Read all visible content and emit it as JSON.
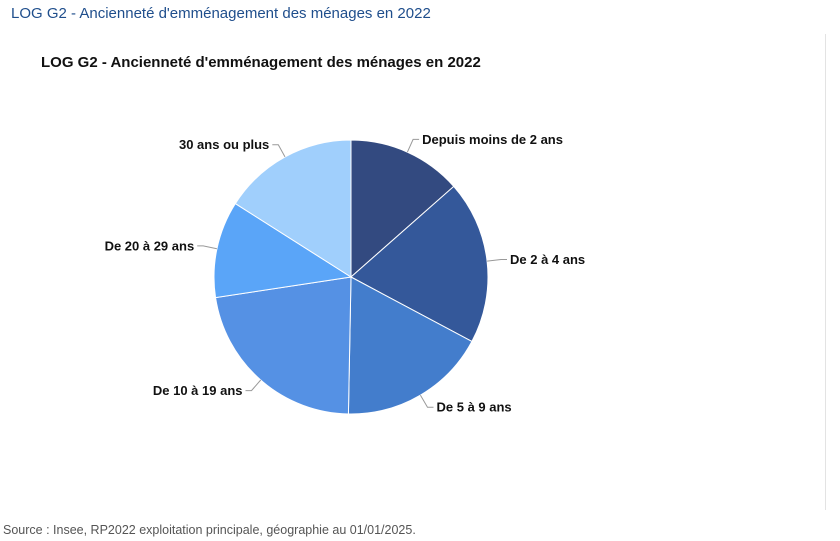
{
  "header": {
    "heading": "LOG G2 - Ancienneté d'emménagement des ménages en 2022"
  },
  "chart_data": {
    "type": "pie",
    "title": "LOG G2 - Ancienneté d'emménagement des ménages en 2022",
    "categories": [
      "Depuis moins de 2 ans",
      "De 2 à 4 ans",
      "De 5 à 9 ans",
      "De 10 à 19 ans",
      "De 20 à 29 ans",
      "30 ans ou plus"
    ],
    "values": [
      13.5,
      19.3,
      17.5,
      22.3,
      11.4,
      16.0
    ],
    "unit": "%",
    "start_angle_deg": 0,
    "direction": "clockwise",
    "colors": [
      "#334a80",
      "#34589a",
      "#437dcc",
      "#5591e4",
      "#5aa5f8",
      "#a0cffc"
    ],
    "legend": "none"
  },
  "footer": {
    "source": "Source : Insee, RP2022 exploitation principale, géographie au 01/01/2025."
  }
}
